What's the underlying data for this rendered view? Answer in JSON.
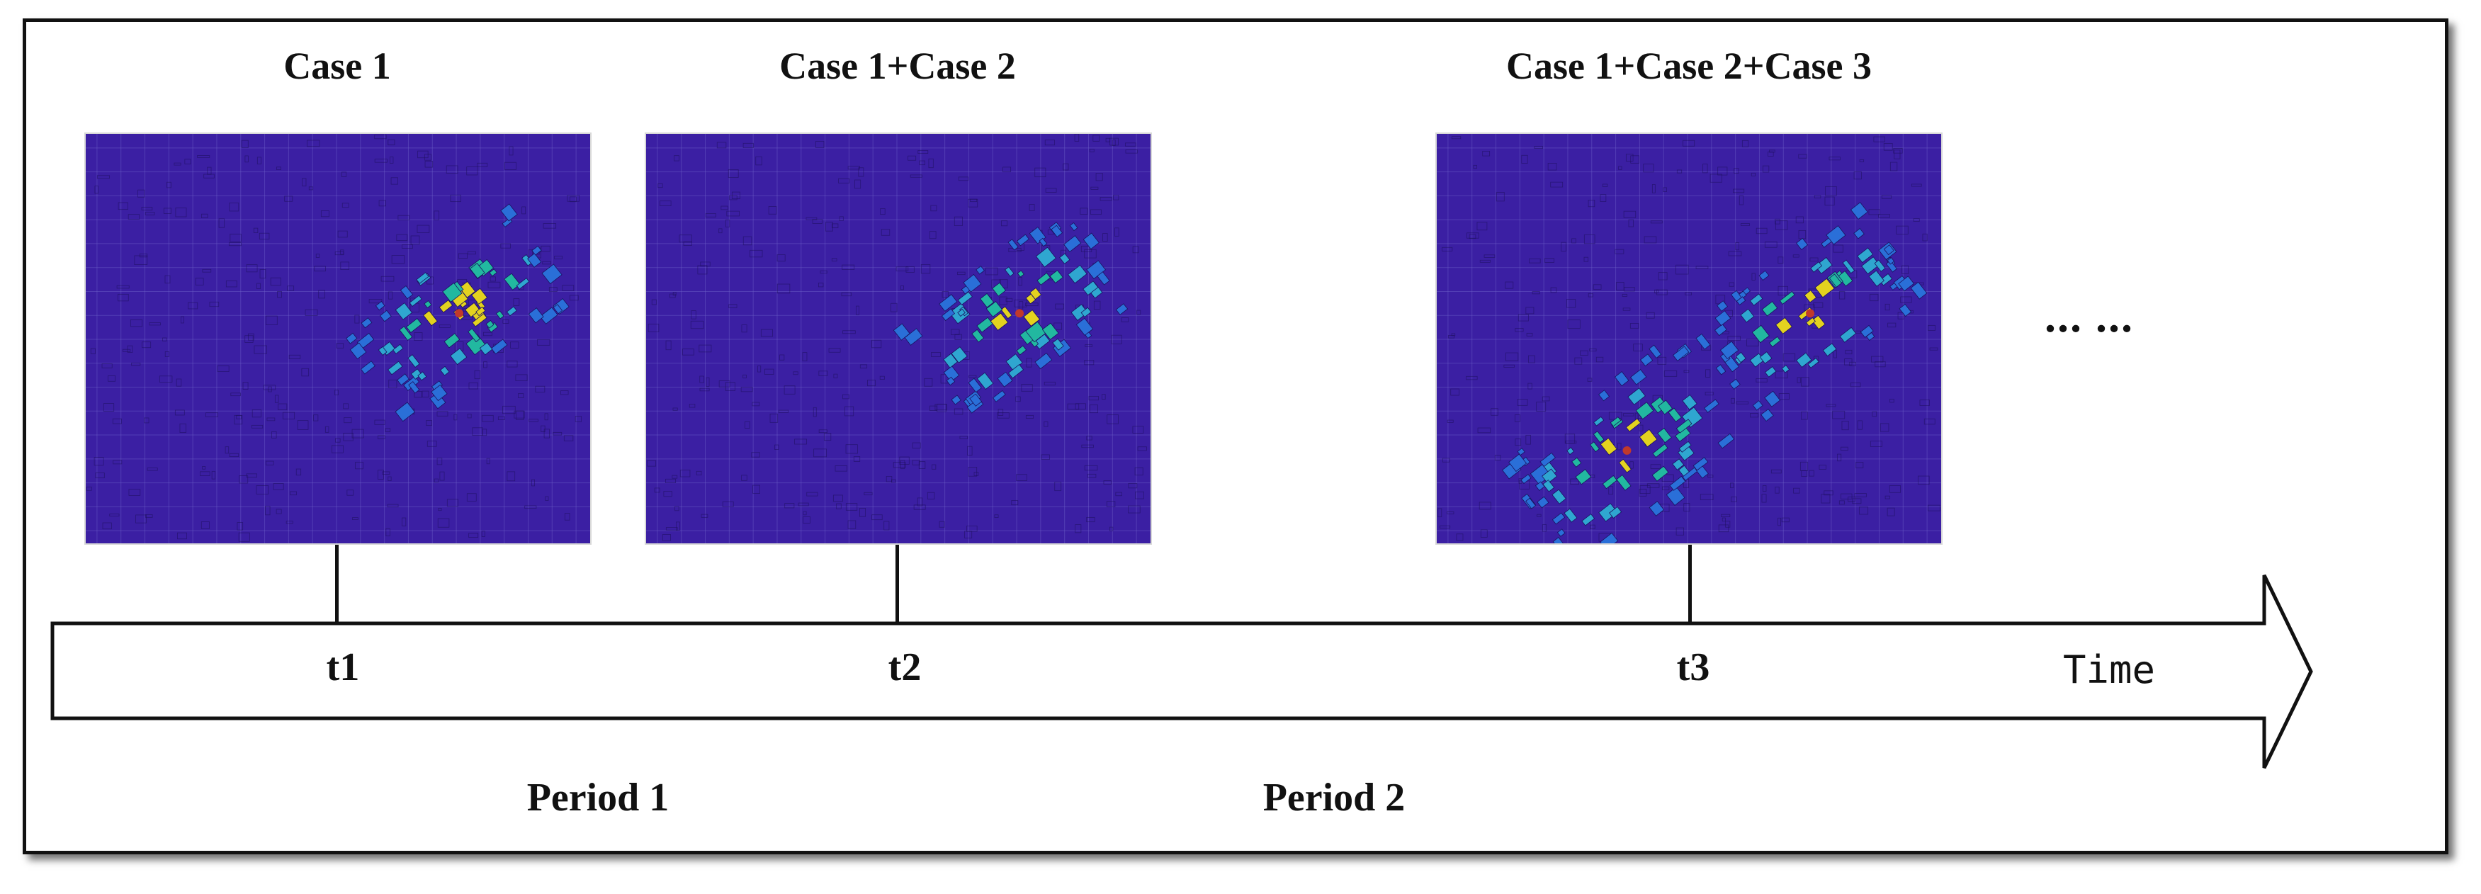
{
  "cases": [
    {
      "title": "Case 1"
    },
    {
      "title": "Case 1+Case 2"
    },
    {
      "title": "Case 1+Case 2+Case 3"
    }
  ],
  "timeline": {
    "ticks": [
      "t1",
      "t2",
      "t3"
    ],
    "axis_label": "Time",
    "continuation": "... ..."
  },
  "periods": [
    "Period 1",
    "Period 2"
  ],
  "colors": {
    "background_heat": "#3b1fa3",
    "low": "#2a6fd8",
    "mid": "#22b8a0",
    "high": "#e3d21f",
    "peak": "#c0392b"
  }
}
